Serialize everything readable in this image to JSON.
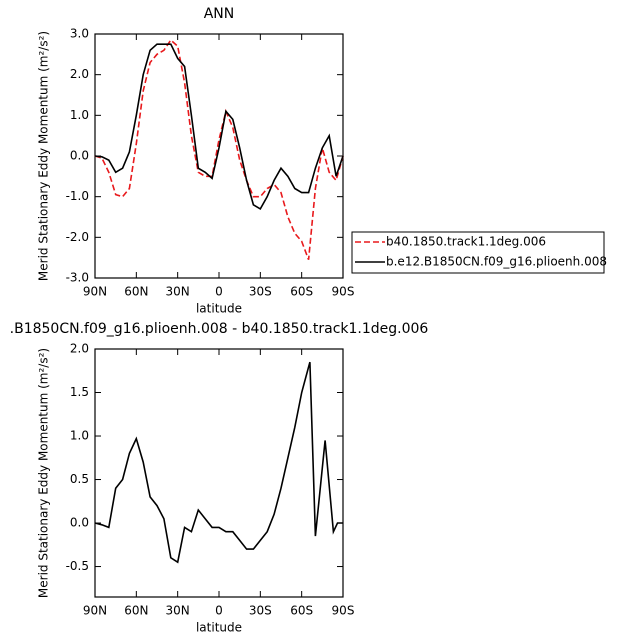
{
  "chart_data": [
    {
      "type": "line",
      "title": "ANN",
      "xlabel": "latitude",
      "ylabel": "Merid Stationary Eddy Momentum (m²/s²)",
      "x": [
        90,
        85,
        80,
        75,
        70,
        65,
        60,
        55,
        50,
        45,
        40,
        35,
        30,
        25,
        20,
        15,
        10,
        5,
        0,
        -5,
        -10,
        -15,
        -20,
        -25,
        -30,
        -35,
        -40,
        -45,
        -50,
        -55,
        -60,
        -65,
        -70,
        -75,
        -80,
        -85,
        -90
      ],
      "xlim": [
        90,
        -90
      ],
      "xticks": [
        {
          "value": 90,
          "label": "90N"
        },
        {
          "value": 60,
          "label": "60N"
        },
        {
          "value": 30,
          "label": "30N"
        },
        0,
        {
          "value": -30,
          "label": "30S"
        },
        {
          "value": -60,
          "label": "60S"
        },
        {
          "value": -90,
          "label": "90S"
        }
      ],
      "ylim": [
        -3,
        3
      ],
      "yticks": [
        {
          "value": -3,
          "label": "-3.0"
        },
        {
          "value": -2,
          "label": "-2.0"
        },
        {
          "value": -1,
          "label": "-1.0"
        },
        {
          "value": 0,
          "label": "0.0"
        },
        {
          "value": 1,
          "label": "1.0"
        },
        {
          "value": 2,
          "label": "2.0"
        },
        {
          "value": 3,
          "label": "3.0"
        }
      ],
      "series": [
        {
          "name": "b40.1850.track1.1deg.006",
          "color": "#e8191c",
          "linestyle": "dashed",
          "values": [
            0.0,
            -0.05,
            -0.4,
            -0.95,
            -1.0,
            -0.8,
            0.3,
            1.6,
            2.3,
            2.5,
            2.6,
            2.85,
            2.7,
            1.8,
            0.5,
            -0.4,
            -0.5,
            -0.5,
            0.4,
            1.1,
            0.7,
            -0.1,
            -0.6,
            -1.0,
            -1.0,
            -0.8,
            -0.7,
            -0.9,
            -1.5,
            -1.9,
            -2.1,
            -2.55,
            -0.8,
            0.2,
            -0.4,
            -0.6,
            0.0
          ]
        },
        {
          "name": "b.e12.B1850CN.f09_g16.plioenh.008",
          "color": "#000000",
          "linestyle": "solid",
          "values": [
            0.0,
            -0.02,
            -0.1,
            -0.4,
            -0.3,
            0.1,
            1.0,
            2.0,
            2.6,
            2.75,
            2.75,
            2.75,
            2.4,
            2.2,
            1.0,
            -0.3,
            -0.4,
            -0.55,
            0.2,
            1.1,
            0.9,
            0.2,
            -0.6,
            -1.2,
            -1.3,
            -1.0,
            -0.6,
            -0.3,
            -0.5,
            -0.8,
            -0.9,
            -0.9,
            -0.3,
            0.2,
            0.5,
            -0.5,
            0.0
          ]
        }
      ]
    },
    {
      "type": "line",
      "title": ".B1850CN.f09_g16.plioenh.008 - b40.1850.track1.1deg.006",
      "xlabel": "latitude",
      "ylabel": "Merid Stationary Eddy Momentum (m²/s²)",
      "x": [
        90,
        85,
        80,
        75,
        70,
        65,
        60,
        55,
        50,
        45,
        40,
        35,
        30,
        25,
        20,
        15,
        10,
        5,
        0,
        -5,
        -10,
        -15,
        -20,
        -25,
        -30,
        -35,
        -40,
        -45,
        -50,
        -55,
        -60,
        -66,
        -70,
        -77,
        -83,
        -86,
        -90
      ],
      "xlim": [
        90,
        -90
      ],
      "xticks": [
        {
          "value": 90,
          "label": "90N"
        },
        {
          "value": 60,
          "label": "60N"
        },
        {
          "value": 30,
          "label": "30N"
        },
        0,
        {
          "value": -30,
          "label": "30S"
        },
        {
          "value": -60,
          "label": "60S"
        },
        {
          "value": -90,
          "label": "90S"
        }
      ],
      "ylim": [
        -0.85,
        2.0
      ],
      "yticks": [
        -0.5,
        {
          "value": 0,
          "label": "0.0"
        },
        0.5,
        {
          "value": 1,
          "label": "1.0"
        },
        1.5,
        {
          "value": 2,
          "label": "2.0"
        }
      ],
      "series": [
        {
          "color": "#000000",
          "linestyle": "solid",
          "values": [
            0.0,
            -0.02,
            -0.05,
            0.4,
            0.5,
            0.8,
            0.97,
            0.7,
            0.3,
            0.2,
            0.05,
            -0.4,
            -0.45,
            -0.05,
            -0.1,
            0.15,
            0.05,
            -0.05,
            -0.05,
            -0.1,
            -0.1,
            -0.2,
            -0.3,
            -0.3,
            -0.2,
            -0.1,
            0.1,
            0.4,
            0.75,
            1.1,
            1.5,
            1.85,
            -0.15,
            0.95,
            -0.1,
            0.0,
            0.0
          ]
        }
      ]
    }
  ]
}
